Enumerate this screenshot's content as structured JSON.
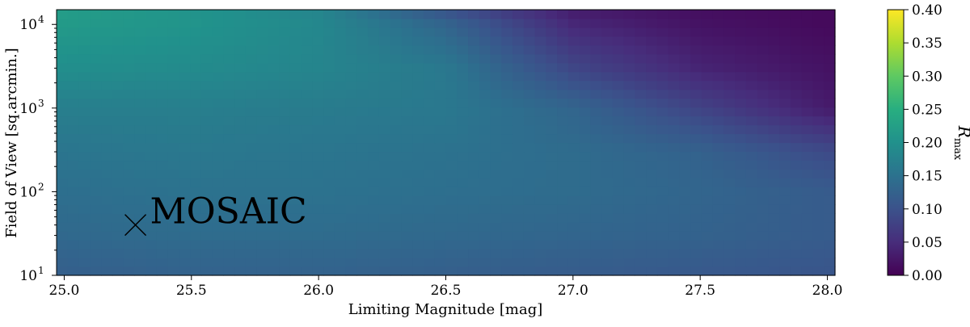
{
  "chart_data": {
    "type": "heatmap",
    "xlabel": "Limiting Magnitude [mag]",
    "ylabel": "Field of View [sq.arcmin.]",
    "x_range": [
      24.97,
      28.03
    ],
    "y_range": [
      10,
      15000
    ],
    "y_scale": "log",
    "x_ticks": [
      25.0,
      25.5,
      26.0,
      26.5,
      27.0,
      27.5,
      28.0
    ],
    "x_tick_labels": [
      "25.0",
      "25.5",
      "26.0",
      "26.5",
      "27.0",
      "27.5",
      "28.0"
    ],
    "y_ticks": [
      {
        "value": 10,
        "base": "10",
        "exp": "1"
      },
      {
        "value": 100,
        "base": "10",
        "exp": "2"
      },
      {
        "value": 1000,
        "base": "10",
        "exp": "3"
      },
      {
        "value": 10000,
        "base": "10",
        "exp": "4"
      }
    ],
    "colorbar": {
      "label_main": "R",
      "label_sub": "max",
      "colormap": "viridis",
      "range": [
        0.0,
        0.4
      ],
      "ticks": [
        0.0,
        0.05,
        0.1,
        0.15,
        0.2,
        0.25,
        0.3,
        0.35,
        0.4
      ],
      "tick_labels": [
        "0.00",
        "0.05",
        "0.10",
        "0.15",
        "0.20",
        "0.25",
        "0.30",
        "0.35",
        "0.40"
      ]
    },
    "grid_x": [
      25.0,
      25.5,
      26.0,
      26.5,
      27.0,
      27.5,
      28.0
    ],
    "grid_y": [
      10,
      30,
      100,
      300,
      1000,
      3000,
      10000,
      15000
    ],
    "z": [
      [
        0.12,
        0.125,
        0.125,
        0.12,
        0.115,
        0.11,
        0.105
      ],
      [
        0.135,
        0.14,
        0.14,
        0.135,
        0.13,
        0.125,
        0.115
      ],
      [
        0.145,
        0.15,
        0.15,
        0.145,
        0.14,
        0.13,
        0.115
      ],
      [
        0.155,
        0.16,
        0.155,
        0.15,
        0.14,
        0.125,
        0.09
      ],
      [
        0.17,
        0.17,
        0.165,
        0.16,
        0.13,
        0.08,
        0.03
      ],
      [
        0.195,
        0.19,
        0.18,
        0.16,
        0.085,
        0.04,
        0.02
      ],
      [
        0.215,
        0.205,
        0.185,
        0.13,
        0.045,
        0.02,
        0.01
      ],
      [
        0.22,
        0.205,
        0.18,
        0.1,
        0.03,
        0.015,
        0.01
      ]
    ],
    "annotations": [
      {
        "text": "MOSAIC",
        "marker": "x",
        "x": 25.28,
        "y": 40
      }
    ]
  }
}
